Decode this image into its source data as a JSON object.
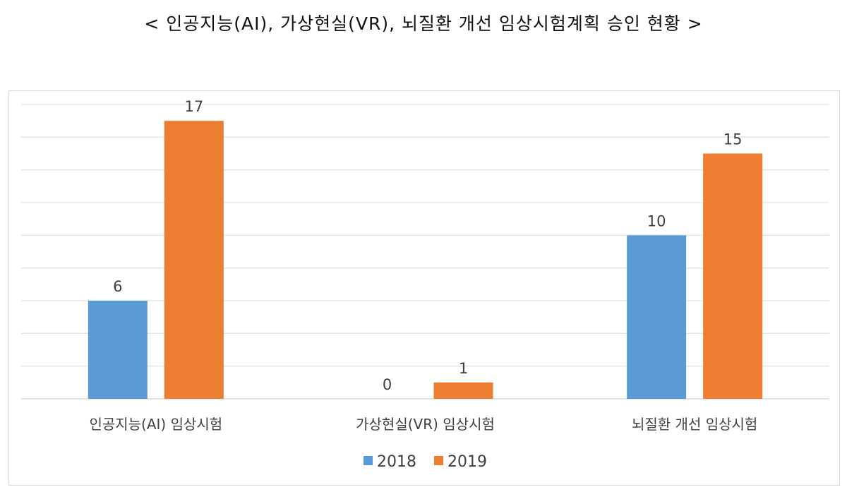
{
  "chart_data": {
    "type": "bar",
    "title": "< 인공지능(AI), 가상현실(VR), 뇌질환 개선 임상시험계획 승인 현황 >",
    "categories": [
      "인공지능(AI) 임상시험",
      "가상현실(VR) 임상시험",
      "뇌질환 개선 임상시험"
    ],
    "series": [
      {
        "name": "2018",
        "values": [
          6,
          0,
          10
        ],
        "color": "#5B9BD5"
      },
      {
        "name": "2019",
        "values": [
          17,
          1,
          15
        ],
        "color": "#ED7D31"
      }
    ],
    "xlabel": "",
    "ylabel": "",
    "ylim": [
      0,
      18
    ],
    "ytick_step": 2,
    "y_tick_labels_shown": false,
    "grid": true,
    "data_labels": true,
    "legend": "bottom"
  }
}
